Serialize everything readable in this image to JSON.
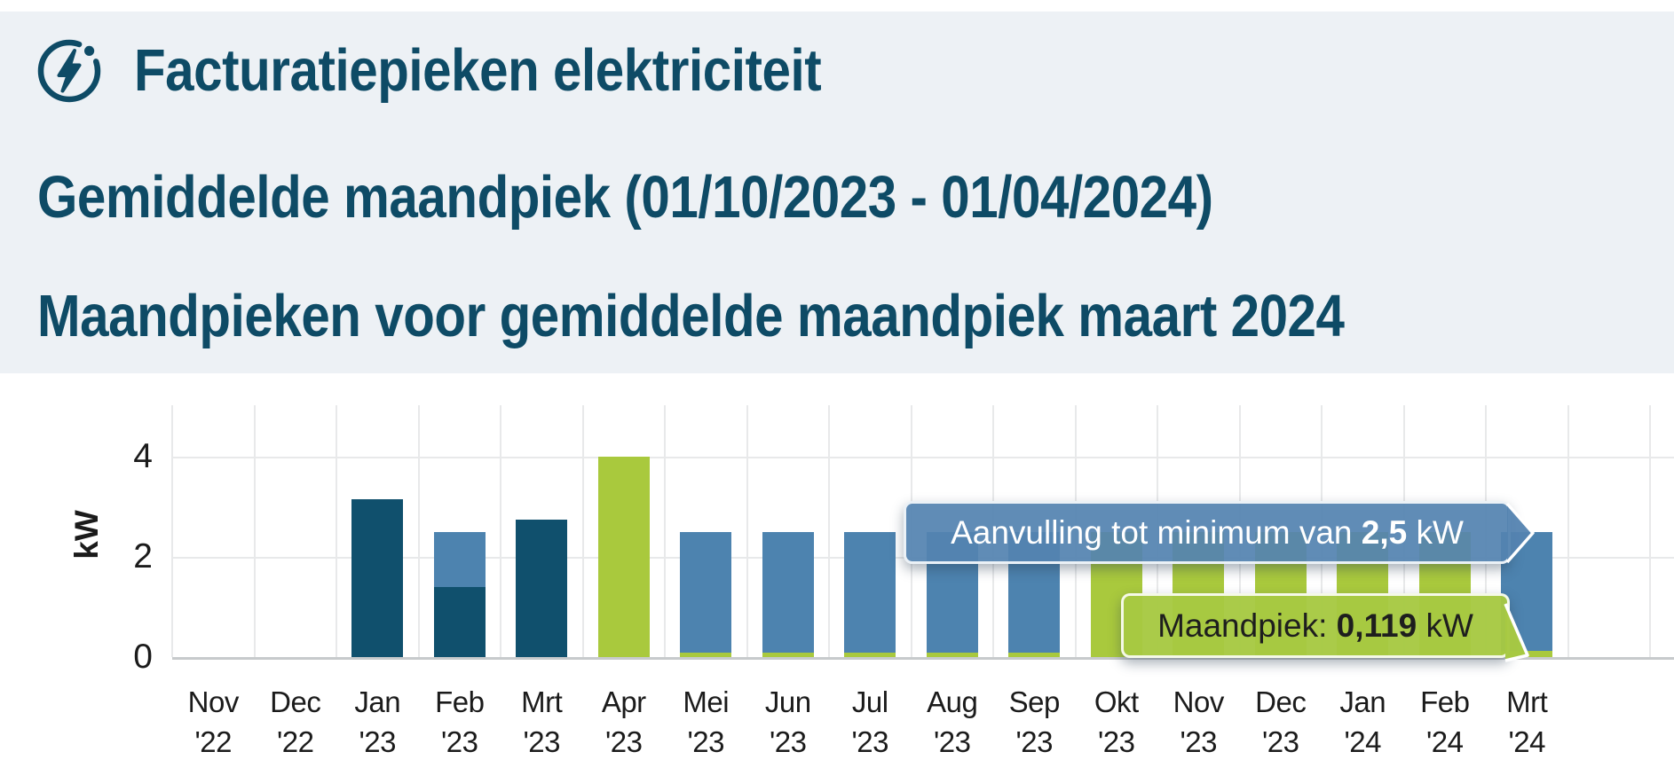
{
  "header": {
    "title": "Facturatiepieken elektriciteit",
    "subtitle_average": "Gemiddelde maandpiek (01/10/2023 - 01/04/2024)",
    "subtitle_months": "Maandpieken voor gemiddelde maandpiek maart 2024"
  },
  "icon": {
    "name": "electricity-flash-icon",
    "color": "#0e4b66"
  },
  "tooltips": {
    "minimum": {
      "prefix": "Aanvulling tot minimum van ",
      "value": "2,5",
      "suffix": " kW"
    },
    "month_peak": {
      "prefix": "Maandpiek: ",
      "value": "0,119",
      "suffix": " kW"
    }
  },
  "chart_data": {
    "type": "bar",
    "stacked": true,
    "title": "Maandpieken voor gemiddelde maandpiek maart 2024",
    "ylabel": "kW",
    "y_ticks": [
      0,
      2,
      4
    ],
    "ylim": [
      0,
      5
    ],
    "grid": true,
    "colors": {
      "billed_peak": "#10506d",
      "supplement": "#4d83af",
      "measured_peak": "#a9c93d",
      "grid": "#e8e9ea",
      "axis": "#c7cacc",
      "heading": "#0e4b66",
      "header_background": "#edf1f5",
      "tooltip_minimum_bg": "#5484b0",
      "tooltip_month_peak_bg": "#a7c942"
    },
    "months": [
      {
        "label": "Nov",
        "year": "'22",
        "segments": []
      },
      {
        "label": "Dec",
        "year": "'22",
        "segments": []
      },
      {
        "label": "Jan",
        "year": "'23",
        "segments": [
          {
            "kind": "billed_peak",
            "value": 3.15
          }
        ]
      },
      {
        "label": "Feb",
        "year": "'23",
        "segments": [
          {
            "kind": "billed_peak",
            "value": 1.4
          },
          {
            "kind": "supplement",
            "value": 1.1
          }
        ]
      },
      {
        "label": "Mrt",
        "year": "'23",
        "segments": [
          {
            "kind": "billed_peak",
            "value": 2.75
          }
        ]
      },
      {
        "label": "Apr",
        "year": "'23",
        "segments": [
          {
            "kind": "measured_peak",
            "value": 4.0
          }
        ]
      },
      {
        "label": "Mei",
        "year": "'23",
        "segments": [
          {
            "kind": "measured_peak",
            "value": 0.08
          },
          {
            "kind": "supplement",
            "value": 2.42
          }
        ]
      },
      {
        "label": "Jun",
        "year": "'23",
        "segments": [
          {
            "kind": "measured_peak",
            "value": 0.08
          },
          {
            "kind": "supplement",
            "value": 2.42
          }
        ]
      },
      {
        "label": "Jul",
        "year": "'23",
        "segments": [
          {
            "kind": "measured_peak",
            "value": 0.08
          },
          {
            "kind": "supplement",
            "value": 2.42
          }
        ]
      },
      {
        "label": "Aug",
        "year": "'23",
        "segments": [
          {
            "kind": "measured_peak",
            "value": 0.08
          },
          {
            "kind": "supplement",
            "value": 2.42
          }
        ]
      },
      {
        "label": "Sep",
        "year": "'23",
        "segments": [
          {
            "kind": "measured_peak",
            "value": 0.08
          },
          {
            "kind": "supplement",
            "value": 2.42
          }
        ]
      },
      {
        "label": "Okt",
        "year": "'23",
        "segments": [
          {
            "kind": "measured_peak",
            "value": 2.5
          }
        ]
      },
      {
        "label": "Nov",
        "year": "'23",
        "segments": [
          {
            "kind": "measured_peak",
            "value": 2.5
          }
        ]
      },
      {
        "label": "Dec",
        "year": "'23",
        "segments": [
          {
            "kind": "measured_peak",
            "value": 2.5
          }
        ]
      },
      {
        "label": "Jan",
        "year": "'24",
        "segments": [
          {
            "kind": "measured_peak",
            "value": 2.5
          }
        ]
      },
      {
        "label": "Feb",
        "year": "'24",
        "segments": [
          {
            "kind": "measured_peak",
            "value": 2.5
          }
        ]
      },
      {
        "label": "Mrt",
        "year": "'24",
        "segments": [
          {
            "kind": "measured_peak",
            "value": 0.119
          },
          {
            "kind": "supplement",
            "value": 2.381
          }
        ]
      }
    ],
    "annotations": [
      {
        "target": "Mrt '24 supplement",
        "text": "Aanvulling tot minimum van 2,5 kW"
      },
      {
        "target": "Mrt '24 measured peak",
        "text": "Maandpiek: 0,119 kW"
      }
    ]
  }
}
